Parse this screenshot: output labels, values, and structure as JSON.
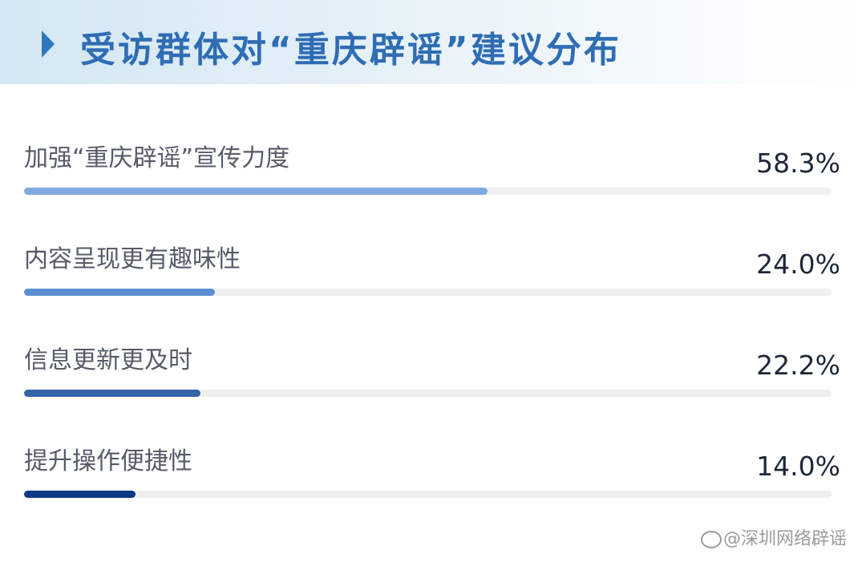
{
  "header": {
    "title": "受访群体对“重庆辟谣”建议分布"
  },
  "chart_data": {
    "type": "bar",
    "orientation": "horizontal",
    "title": "受访群体对“重庆辟谣”建议分布",
    "categories": [
      "加强“重庆辟谣”宣传力度",
      "内容呈现更有趣味性",
      "信息更新更及时",
      "提升操作便捷性"
    ],
    "values": [
      58.3,
      24.0,
      22.2,
      14.0
    ],
    "value_labels": [
      "58.3%",
      "24.0%",
      "22.2%",
      "14.0%"
    ],
    "colors": [
      "#80a9df",
      "#5b8fd3",
      "#3563a8",
      "#0c3a85"
    ],
    "xlim": [
      0,
      100
    ],
    "grid": false
  },
  "watermark": {
    "text": "@深圳网络辟谣",
    "icon": "weibo-icon"
  }
}
